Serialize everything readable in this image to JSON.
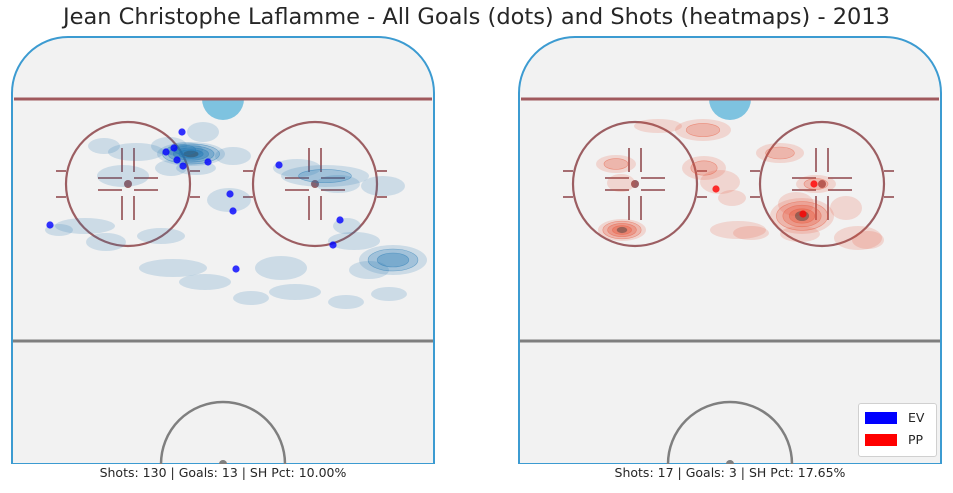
{
  "chart_data": {
    "type": "heatmap",
    "title": "Jean Christophe Laflamme - All Goals (dots) and Shots (heatmaps) - 2013",
    "legend": {
      "placement": "bottom-right",
      "entries": [
        {
          "label": "EV",
          "color": "#0000ff"
        },
        {
          "label": "PP",
          "color": "#ff0000"
        }
      ]
    },
    "panels": [
      {
        "series": "EV",
        "caption": "Shots: 130 | Goals: 13 | SH Pct: 10.00%",
        "color": "#1f77b4",
        "goal_color": "#0000ff",
        "goals": [
          [
            39,
            189
          ],
          [
            171,
            96
          ],
          [
            163,
            112
          ],
          [
            155,
            116
          ],
          [
            166,
            124
          ],
          [
            172,
            130
          ],
          [
            197,
            126
          ],
          [
            268,
            129
          ],
          [
            219,
            158
          ],
          [
            222,
            175
          ],
          [
            329,
            184
          ],
          [
            322,
            209
          ],
          [
            225,
            233
          ]
        ],
        "shots": [
          [
            180,
            118,
            34,
            12,
            5
          ],
          [
            174,
            114,
            18,
            8,
            2
          ],
          [
            158,
            110,
            18,
            9,
            1
          ],
          [
            185,
            132,
            20,
            7,
            1
          ],
          [
            125,
            116,
            28,
            9,
            1
          ],
          [
            112,
            140,
            26,
            11,
            1
          ],
          [
            218,
            164,
            22,
            12,
            1
          ],
          [
            222,
            120,
            18,
            9,
            1
          ],
          [
            93,
            110,
            16,
            8,
            1
          ],
          [
            192,
            96,
            16,
            10,
            1
          ],
          [
            160,
            132,
            16,
            8,
            1
          ],
          [
            314,
            140,
            44,
            11,
            2
          ],
          [
            286,
            132,
            24,
            9,
            1
          ],
          [
            327,
            148,
            22,
            9,
            1
          ],
          [
            372,
            150,
            22,
            10,
            1
          ],
          [
            343,
            205,
            26,
            9,
            1
          ],
          [
            382,
            224,
            34,
            15,
            3
          ],
          [
            358,
            234,
            20,
            9,
            1
          ],
          [
            74,
            190,
            30,
            8,
            1
          ],
          [
            48,
            194,
            14,
            6,
            1
          ],
          [
            150,
            200,
            24,
            8,
            1
          ],
          [
            95,
            206,
            20,
            9,
            1
          ],
          [
            162,
            232,
            34,
            9,
            1
          ],
          [
            194,
            246,
            26,
            8,
            1
          ],
          [
            270,
            232,
            26,
            12,
            1
          ],
          [
            284,
            256,
            26,
            8,
            1
          ],
          [
            335,
            266,
            18,
            7,
            1
          ],
          [
            378,
            258,
            18,
            7,
            1
          ],
          [
            240,
            262,
            18,
            7,
            1
          ],
          [
            336,
            190,
            14,
            8,
            1
          ]
        ]
      },
      {
        "series": "PP",
        "caption": "Shots: 17 | Goals: 3 | SH Pct: 17.65%",
        "color": "#e8553a",
        "goal_color": "#ff0000",
        "goals": [
          [
            198,
            153
          ],
          [
            296,
            148
          ],
          [
            285,
            178
          ]
        ],
        "shots": [
          [
            104,
            194,
            24,
            11,
            4
          ],
          [
            185,
            94,
            28,
            11,
            2
          ],
          [
            140,
            90,
            24,
            7,
            1
          ],
          [
            98,
            128,
            20,
            9,
            2
          ],
          [
            103,
            147,
            14,
            9,
            1
          ],
          [
            186,
            132,
            22,
            12,
            2
          ],
          [
            202,
            146,
            20,
            12,
            1
          ],
          [
            214,
            162,
            14,
            8,
            1
          ],
          [
            262,
            117,
            24,
            10,
            2
          ],
          [
            298,
            148,
            20,
            9,
            2
          ],
          [
            278,
            168,
            18,
            12,
            1
          ],
          [
            284,
            180,
            32,
            18,
            4
          ],
          [
            328,
            172,
            16,
            12,
            1
          ],
          [
            340,
            202,
            24,
            12,
            1
          ],
          [
            282,
            198,
            20,
            8,
            1
          ],
          [
            220,
            194,
            28,
            9,
            1
          ],
          [
            233,
            197,
            18,
            7,
            1
          ],
          [
            350,
            204,
            16,
            9,
            1
          ]
        ]
      }
    ]
  }
}
